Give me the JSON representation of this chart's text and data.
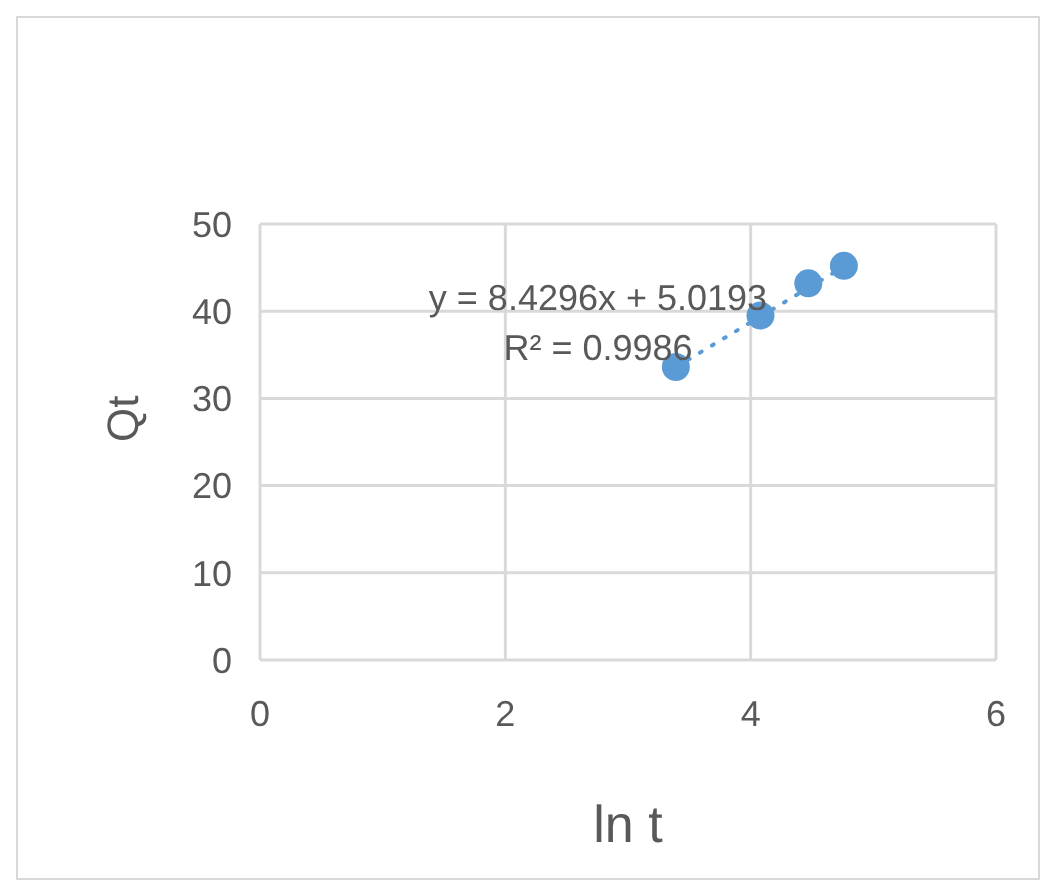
{
  "chart_data": {
    "type": "scatter",
    "xlabel": "ln t",
    "ylabel": "Qt",
    "x": [
      3.39,
      4.08,
      4.47,
      4.76
    ],
    "series": [
      {
        "color": "#5b9bd5",
        "values": [
          33.6,
          39.5,
          43.2,
          45.2
        ]
      },
      {
        "type": "line",
        "color": "#5b9bd5",
        "line_style": "dotted",
        "marker": "none",
        "x": [
          3.39,
          4.76
        ],
        "values": [
          33.6,
          45.1
        ]
      }
    ],
    "xlim": [
      0,
      6
    ],
    "xticks": [
      0,
      2,
      4,
      6
    ],
    "ylim": [
      0,
      50
    ],
    "yticks": [
      0,
      10,
      20,
      30,
      40,
      50
    ],
    "grid": true,
    "marker": "circle",
    "annotations": [
      "y = 8.4296x + 5.0193",
      "R² = 0.9986"
    ]
  }
}
